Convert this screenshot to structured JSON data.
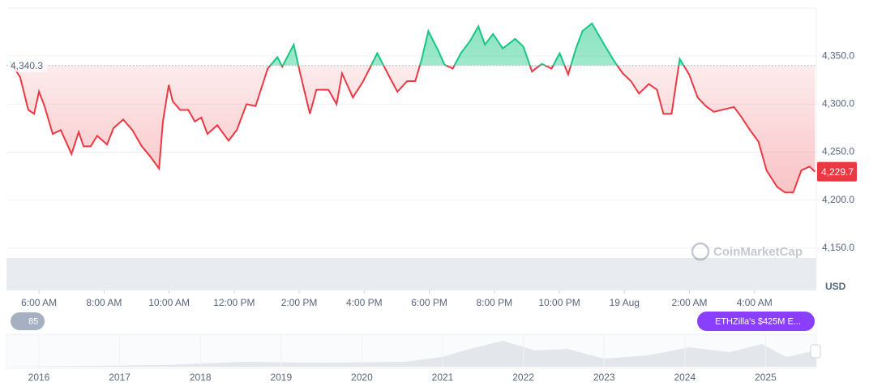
{
  "chart_data": {
    "type": "line",
    "x": [
      5.1,
      5.42,
      5.67,
      5.85,
      6.0,
      6.17,
      6.42,
      6.67,
      7.0,
      7.22,
      7.37,
      7.59,
      7.79,
      8.09,
      8.29,
      8.59,
      8.87,
      9.16,
      9.41,
      9.69,
      9.81,
      9.99,
      10.11,
      10.34,
      10.59,
      10.79,
      10.99,
      11.18,
      11.48,
      11.83,
      12.08,
      12.38,
      12.66,
      13.03,
      13.33,
      13.48,
      13.83,
      14.03,
      14.33,
      14.53,
      14.9,
      15.15,
      15.32,
      15.65,
      15.97,
      16.4,
      16.72,
      17.02,
      17.32,
      17.57,
      17.77,
      17.97,
      18.27,
      18.47,
      18.72,
      18.97,
      19.26,
      19.51,
      19.71,
      19.96,
      20.26,
      20.64,
      20.89,
      21.16,
      21.46,
      21.76,
      22.01,
      22.27,
      22.51,
      22.71,
      23.0,
      23.38,
      23.68,
      23.95,
      24.2,
      24.45,
      24.75,
      25.0,
      25.2,
      25.45,
      25.7,
      25.99,
      26.25,
      26.5,
      26.75,
      27.12,
      27.37,
      27.61,
      27.86,
      28.12,
      28.37,
      28.69,
      28.94,
      29.19,
      29.44,
      29.69,
      29.86
    ],
    "values": [
      4345,
      4328,
      4294,
      4290,
      4313,
      4298,
      4269,
      4273,
      4248,
      4271,
      4256,
      4256,
      4267,
      4258,
      4275,
      4284,
      4273,
      4256,
      4246,
      4233,
      4282,
      4320,
      4303,
      4294,
      4294,
      4282,
      4286,
      4269,
      4278,
      4262,
      4273,
      4300,
      4298,
      4337,
      4349,
      4339,
      4362,
      4332,
      4290,
      4315,
      4315,
      4300,
      4332,
      4307,
      4324,
      4353,
      4332,
      4313,
      4324,
      4324,
      4347,
      4376,
      4356,
      4341,
      4337,
      4353,
      4366,
      4381,
      4362,
      4373,
      4358,
      4368,
      4360,
      4334,
      4342,
      4337,
      4353,
      4331,
      4358,
      4376,
      4384,
      4362,
      4345,
      4332,
      4324,
      4311,
      4321,
      4315,
      4290,
      4290,
      4347,
      4331,
      4307,
      4298,
      4292,
      4295,
      4297,
      4286,
      4273,
      4261,
      4231,
      4214,
      4208,
      4208,
      4231,
      4235,
      4229.7
    ],
    "color_above": "#16c784",
    "color_below": "#ea3943",
    "baseline": {
      "value": 4340.3,
      "label": "4,340.3"
    },
    "current": {
      "value": 4229.7,
      "label": "4,229.7"
    },
    "xlim": [
      5,
      29.9
    ],
    "xticks": [
      {
        "value": 6,
        "label": "6:00 AM"
      },
      {
        "value": 8,
        "label": "8:00 AM"
      },
      {
        "value": 10,
        "label": "10:00 AM"
      },
      {
        "value": 12,
        "label": "12:00 PM"
      },
      {
        "value": 14,
        "label": "2:00 PM"
      },
      {
        "value": 16,
        "label": "4:00 PM"
      },
      {
        "value": 18,
        "label": "6:00 PM"
      },
      {
        "value": 20,
        "label": "8:00 PM"
      },
      {
        "value": 22,
        "label": "10:00 PM"
      },
      {
        "value": 24,
        "label": "19 Aug"
      },
      {
        "value": 26,
        "label": "2:00 AM"
      },
      {
        "value": 28,
        "label": "4:00 AM"
      }
    ],
    "ylim": [
      4106,
      4400
    ],
    "yticks": [
      {
        "value": 4150,
        "label": "4,150.0"
      },
      {
        "value": 4200,
        "label": "4,200.0"
      },
      {
        "value": 4250,
        "label": "4,250.0"
      },
      {
        "value": 4300,
        "label": "4,300.0"
      },
      {
        "value": 4350,
        "label": "4,350.0"
      }
    ],
    "currency": "USD",
    "watermark": "CoinMarketCap",
    "badge": "85",
    "news": "ETHZilla's $425M E...",
    "navigator_years": [
      "2016",
      "2017",
      "2018",
      "2019",
      "2020",
      "2021",
      "2022",
      "2023",
      "2024",
      "2025"
    ]
  }
}
